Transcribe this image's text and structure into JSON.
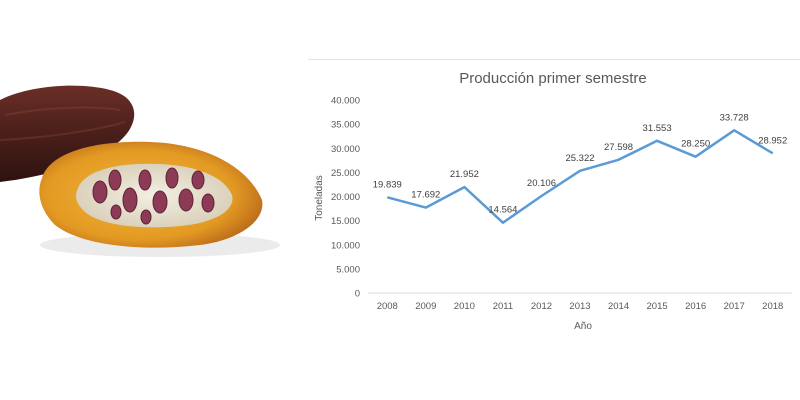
{
  "chart_data": {
    "type": "line",
    "title": "Producción primer semestre",
    "xlabel": "Año",
    "ylabel": "Toneladas",
    "categories": [
      "2008",
      "2009",
      "2010",
      "2011",
      "2012",
      "2013",
      "2014",
      "2015",
      "2016",
      "2017",
      "2018"
    ],
    "series": [
      {
        "values": [
          19839,
          17692,
          21952,
          14564,
          20106,
          25322,
          27598,
          31553,
          28250,
          33728,
          28952
        ],
        "labels": [
          "19.839",
          "17.692",
          "21.952",
          "14.564",
          "20.106",
          "25.322",
          "27.598",
          "31.553",
          "28.250",
          "33.728",
          "28.952"
        ]
      }
    ],
    "ylim": [
      0,
      40000
    ],
    "yticks": [
      "0",
      "5.000",
      "10.000",
      "15.000",
      "20.000",
      "25.000",
      "30.000",
      "35.000",
      "40.000"
    ],
    "grid": false,
    "line_color": "#5b9bd5"
  }
}
